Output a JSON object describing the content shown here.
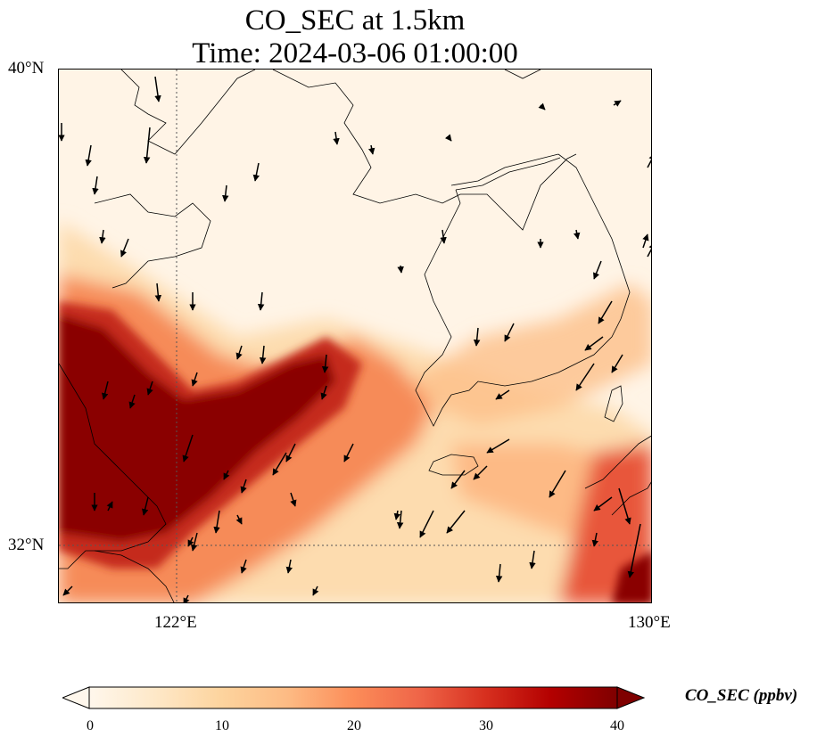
{
  "title": {
    "line1": "CO_SEC at 1.5km",
    "line2": "Time: 2024-03-06 01:00:00"
  },
  "map": {
    "lat_labels": [
      "40°N",
      "32°N"
    ],
    "lon_labels": [
      "122°E",
      "130°E"
    ],
    "extent": {
      "lon_min": 118,
      "lon_max": 130,
      "lat_min": 31,
      "lat_max": 40
    },
    "gridlines": {
      "lon": [
        122,
        130
      ],
      "lat": [
        32,
        40
      ],
      "style": "dotted"
    },
    "field_description": "High CO_SEC plume over Yellow Sea / eastern China"
  },
  "colorbar": {
    "label": "CO_SEC (ppbv)",
    "ticks": [
      "0",
      "10",
      "20",
      "30",
      "40"
    ],
    "min": 0,
    "max": 40,
    "extend": "both",
    "colormap": "OrRd",
    "colors": [
      "#fff7ec",
      "#fee8c8",
      "#fdd49e",
      "#fdbb84",
      "#fc8d59",
      "#ef6548",
      "#d7301f",
      "#b30000",
      "#7f0000"
    ]
  },
  "chart_data": {
    "type": "heatmap",
    "title": "CO_SEC at 1.5km / Time: 2024-03-06 01:00:00",
    "xlabel": "",
    "ylabel": "",
    "x_ticks": [
      "122°E",
      "130°E"
    ],
    "y_ticks": [
      "40°N",
      "32°N"
    ],
    "value_range": [
      0,
      40
    ],
    "colorbar_label": "CO_SEC (ppbv)",
    "legend": "bottom",
    "grid": true
  },
  "icons": {
    "wind_vectors": "wind-arrow-icon"
  }
}
